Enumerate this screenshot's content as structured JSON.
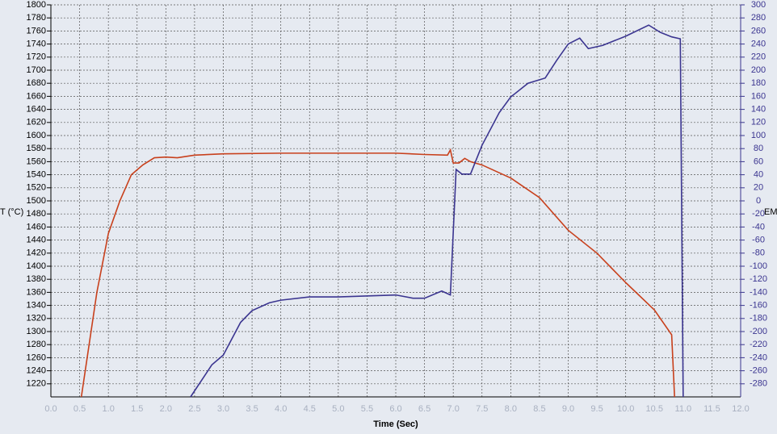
{
  "chart_data": {
    "type": "line",
    "x_label": "Time (Sec)",
    "y_label": "T (°C)",
    "y2_label": "EM",
    "xlim": [
      0,
      12
    ],
    "ylim": [
      1200,
      1800
    ],
    "y2lim": [
      -300,
      300
    ],
    "grid": true,
    "xticks": [
      {
        "value": 0,
        "label": "0.0"
      },
      0.5,
      {
        "value": 1,
        "label": "1.0"
      },
      1.5,
      {
        "value": 2,
        "label": "2.0"
      },
      2.5,
      {
        "value": 3,
        "label": "3.0"
      },
      3.5,
      {
        "value": 4,
        "label": "4.0"
      },
      4.5,
      {
        "value": 5,
        "label": "5.0"
      },
      5.5,
      {
        "value": 6,
        "label": "6.0"
      },
      6.5,
      {
        "value": 7,
        "label": "7.0"
      },
      7.5,
      {
        "value": 8,
        "label": "8.0"
      },
      8.5,
      {
        "value": 9,
        "label": "9.0"
      },
      9.5,
      {
        "value": 10,
        "label": "10.0"
      },
      10.5,
      {
        "value": 11,
        "label": "11.0"
      },
      11.5,
      {
        "value": 12,
        "label": "12.0"
      }
    ],
    "yticks": [
      1220,
      1240,
      1260,
      1280,
      1300,
      1320,
      1340,
      1360,
      1380,
      1400,
      1420,
      1440,
      1460,
      1480,
      1500,
      1520,
      1540,
      1560,
      1580,
      1600,
      1620,
      1640,
      1660,
      1680,
      1700,
      1720,
      1740,
      1760,
      1780,
      1800
    ],
    "y2ticks": [
      -280,
      -260,
      -240,
      -220,
      -200,
      -180,
      -160,
      -140,
      -120,
      -100,
      -80,
      -60,
      -40,
      -20,
      0,
      20,
      40,
      60,
      80,
      100,
      120,
      140,
      160,
      180,
      200,
      220,
      240,
      260,
      280,
      300
    ],
    "series": [
      {
        "color": "#c8401c",
        "x": [
          0.53,
          0.8,
          1.0,
          1.2,
          1.4,
          1.6,
          1.8,
          2.0,
          2.2,
          2.5,
          3.0,
          4.0,
          5.0,
          6.0,
          6.5,
          6.9,
          6.95,
          7.0,
          7.1,
          7.2,
          7.3,
          7.5,
          8.0,
          8.5,
          9.0,
          9.5,
          10.0,
          10.5,
          10.8,
          10.85
        ],
        "values": [
          1200,
          1360,
          1450,
          1500,
          1540,
          1555,
          1566,
          1567,
          1566,
          1570,
          1572,
          1573,
          1573,
          1573,
          1571,
          1570,
          1578,
          1558,
          1558,
          1565,
          1560,
          1555,
          1535,
          1505,
          1455,
          1420,
          1375,
          1333,
          1295,
          1200
        ]
      },
      {
        "color": "#3b3590",
        "axis": "y2",
        "x": [
          2.43,
          2.8,
          3.0,
          3.3,
          3.5,
          3.8,
          4.0,
          4.5,
          5.0,
          6.0,
          6.3,
          6.5,
          6.8,
          6.95,
          7.05,
          7.15,
          7.3,
          7.5,
          7.8,
          8.0,
          8.3,
          8.6,
          8.8,
          9.0,
          9.2,
          9.35,
          9.6,
          10.0,
          10.4,
          10.6,
          10.8,
          10.95,
          11.0
        ],
        "values": [
          -300,
          -251,
          -236,
          -186,
          -168,
          -156,
          -152,
          -147,
          -147,
          -144,
          -149,
          -149,
          -138,
          -144,
          48,
          41,
          41,
          85,
          135,
          159,
          180,
          188,
          215,
          240,
          249,
          233,
          238,
          252,
          269,
          258,
          251,
          248,
          -300
        ]
      }
    ]
  }
}
